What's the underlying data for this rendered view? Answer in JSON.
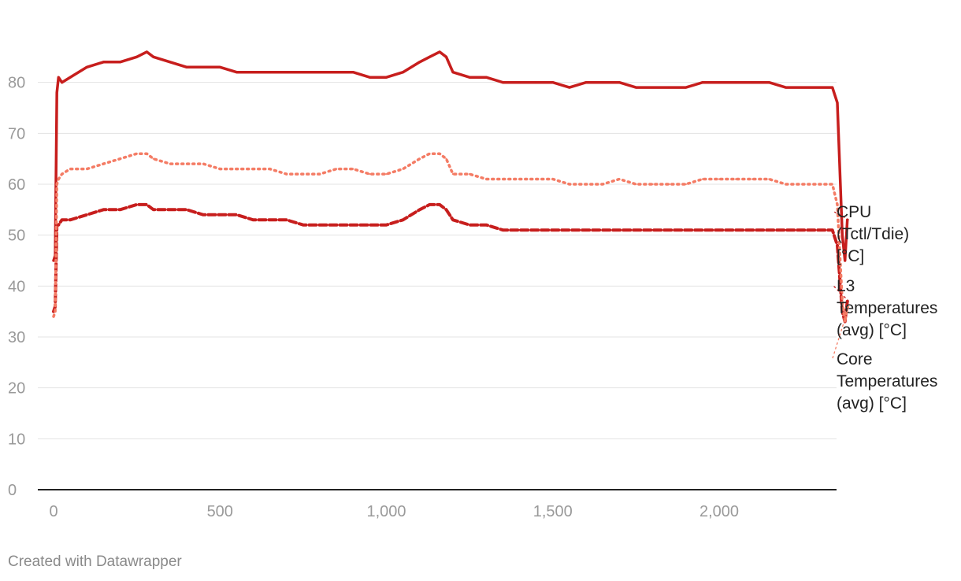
{
  "chart_data": {
    "type": "line",
    "title": "",
    "xlabel": "",
    "ylabel": "",
    "xlim": [
      0,
      2400
    ],
    "ylim": [
      0,
      90
    ],
    "x_ticks": [
      0,
      500,
      1000,
      1500,
      2000
    ],
    "x_tick_labels": [
      "0",
      "500",
      "1,000",
      "1,500",
      "2,000"
    ],
    "y_ticks": [
      0,
      10,
      20,
      30,
      40,
      50,
      60,
      70,
      80
    ],
    "y_tick_labels": [
      "0",
      "10",
      "20",
      "30",
      "40",
      "50",
      "60",
      "70",
      "80"
    ],
    "grid": "horizontal",
    "legend": "direct labels at right end of lines",
    "series": [
      {
        "name": "CPU (Tctl/Tdie) [°C]",
        "label_lines": [
          "CPU",
          "(Tctl/Tdie)",
          "[°C]"
        ],
        "color": "#c71e1d",
        "style": "solid",
        "x": [
          0,
          5,
          10,
          15,
          25,
          50,
          100,
          150,
          200,
          250,
          280,
          300,
          350,
          400,
          450,
          500,
          550,
          600,
          650,
          700,
          750,
          800,
          850,
          900,
          950,
          1000,
          1050,
          1100,
          1130,
          1160,
          1180,
          1200,
          1250,
          1300,
          1350,
          1400,
          1450,
          1500,
          1550,
          1600,
          1650,
          1700,
          1750,
          1800,
          1850,
          1900,
          1950,
          2000,
          2050,
          2100,
          2150,
          2200,
          2250,
          2300,
          2340,
          2355,
          2370,
          2378,
          2385
        ],
        "values": [
          45,
          46,
          78,
          81,
          80,
          81,
          83,
          84,
          84,
          85,
          86,
          85,
          84,
          83,
          83,
          83,
          82,
          82,
          82,
          82,
          82,
          82,
          82,
          82,
          81,
          81,
          82,
          84,
          85,
          86,
          85,
          82,
          81,
          81,
          80,
          80,
          80,
          80,
          79,
          80,
          80,
          80,
          79,
          79,
          79,
          79,
          80,
          80,
          80,
          80,
          80,
          79,
          79,
          79,
          79,
          76,
          50,
          45,
          53
        ]
      },
      {
        "name": "L3 Temperatures (avg) [°C]",
        "label_lines": [
          "L3",
          "Temperatures",
          "(avg) [°C]"
        ],
        "color": "#c71e1d",
        "style": "dashed",
        "x": [
          0,
          5,
          10,
          15,
          25,
          50,
          100,
          150,
          200,
          250,
          280,
          300,
          350,
          400,
          450,
          500,
          550,
          600,
          650,
          700,
          750,
          800,
          850,
          900,
          950,
          1000,
          1050,
          1100,
          1130,
          1160,
          1180,
          1200,
          1250,
          1300,
          1350,
          1400,
          1450,
          1500,
          1550,
          1600,
          1650,
          1700,
          1750,
          1800,
          1850,
          1900,
          1950,
          2000,
          2050,
          2100,
          2150,
          2200,
          2250,
          2300,
          2340,
          2355,
          2370,
          2378,
          2385
        ],
        "values": [
          35,
          36,
          52,
          52,
          53,
          53,
          54,
          55,
          55,
          56,
          56,
          55,
          55,
          55,
          54,
          54,
          54,
          53,
          53,
          53,
          52,
          52,
          52,
          52,
          52,
          52,
          53,
          55,
          56,
          56,
          55,
          53,
          52,
          52,
          51,
          51,
          51,
          51,
          51,
          51,
          51,
          51,
          51,
          51,
          51,
          51,
          51,
          51,
          51,
          51,
          51,
          51,
          51,
          51,
          51,
          48,
          35,
          33,
          37
        ]
      },
      {
        "name": "Core Temperatures (avg) [°C]",
        "label_lines": [
          "Core",
          "Temperatures",
          "(avg) [°C]"
        ],
        "color": "#f47c65",
        "style": "dotted",
        "x": [
          0,
          5,
          10,
          15,
          25,
          50,
          100,
          150,
          200,
          250,
          280,
          300,
          350,
          400,
          450,
          500,
          550,
          600,
          650,
          700,
          750,
          800,
          850,
          900,
          950,
          1000,
          1050,
          1100,
          1130,
          1160,
          1180,
          1200,
          1250,
          1300,
          1350,
          1400,
          1450,
          1500,
          1550,
          1600,
          1650,
          1700,
          1750,
          1800,
          1850,
          1900,
          1950,
          2000,
          2050,
          2100,
          2150,
          2200,
          2250,
          2300,
          2340,
          2355,
          2370,
          2378,
          2385
        ],
        "values": [
          34,
          35,
          60,
          61,
          62,
          63,
          63,
          64,
          65,
          66,
          66,
          65,
          64,
          64,
          64,
          63,
          63,
          63,
          63,
          62,
          62,
          62,
          63,
          63,
          62,
          62,
          63,
          65,
          66,
          66,
          65,
          62,
          62,
          61,
          61,
          61,
          61,
          61,
          60,
          60,
          60,
          61,
          60,
          60,
          60,
          60,
          61,
          61,
          61,
          61,
          61,
          60,
          60,
          60,
          60,
          56,
          37,
          33,
          36
        ]
      }
    ]
  },
  "footer": {
    "credit": "Created with Datawrapper"
  }
}
